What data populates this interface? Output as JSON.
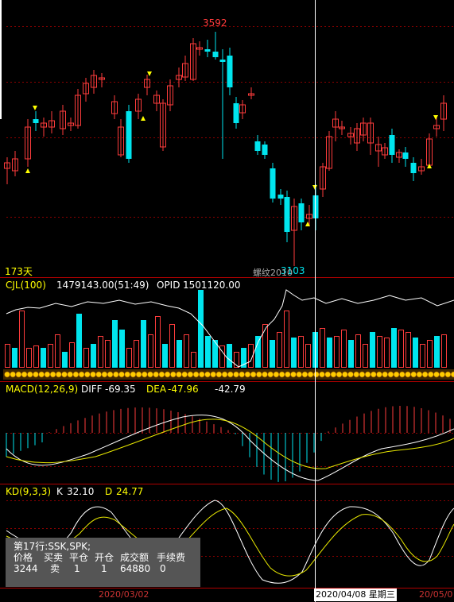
{
  "main_panel": {
    "high_label": "3592",
    "low_label": "3103",
    "days_label": "173天",
    "watermark": "螺纹2010"
  },
  "cjl_panel": {
    "name": "CJL(100)",
    "volume_value": "1479143.00(51:49)",
    "opid_label": "OPID",
    "opid_value": "1501120.00"
  },
  "macd_panel": {
    "name": "MACD(12,26,9)",
    "diff_label": "DIFF",
    "diff_value": "-69.35",
    "dea_label": "DEA",
    "dea_value": "-47.96",
    "macd_value": "-42.79"
  },
  "kd_panel": {
    "name": "KD(9,3,3)",
    "k_label": "K",
    "k_value": "32.10",
    "d_label": "D",
    "d_value": "24.77"
  },
  "trade_info": {
    "title": "第17行:SSK,SPK;",
    "headers": [
      "价格",
      "买卖",
      "平仓",
      "开仓",
      "成交额",
      "手续费"
    ],
    "values": [
      "3244",
      "卖",
      "1",
      "1",
      "64880",
      "0"
    ]
  },
  "date_axis": {
    "date1": "2020/03/02",
    "cursor_date": "2020/04/08 星期三",
    "date2": "20/05/0"
  },
  "colors": {
    "up": "#ff3c3c",
    "down": "#00e5ee",
    "grid": "#8b0000",
    "signal": "#ffff00",
    "white_line": "#ffffff",
    "yellow_line": "#e8e800",
    "band": "#ffcc00"
  }
}
